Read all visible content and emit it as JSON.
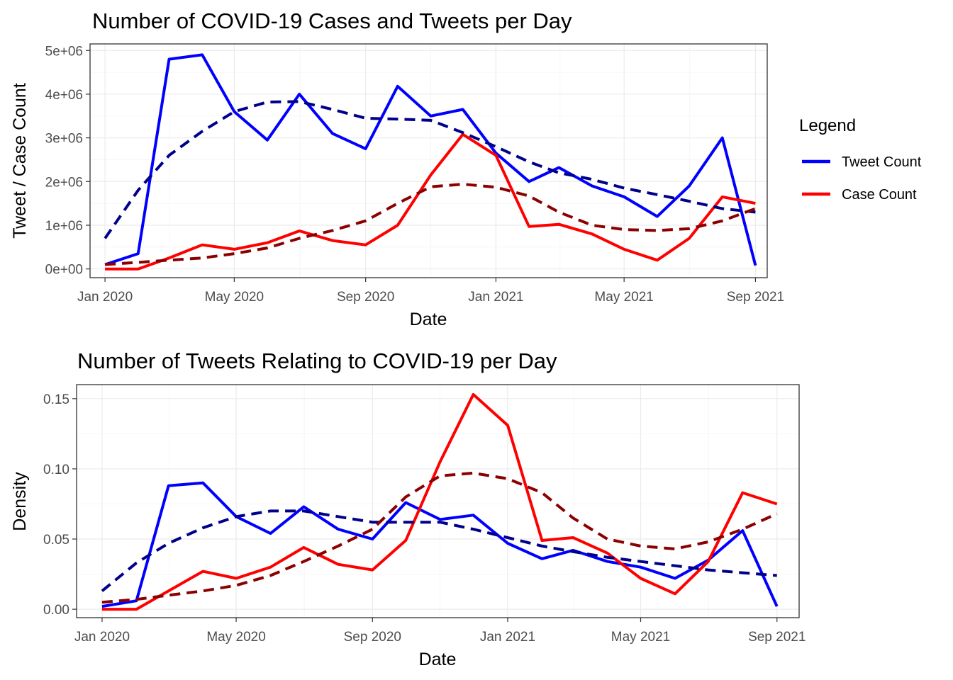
{
  "chart_data": [
    {
      "type": "line",
      "title": "Number of COVID-19 Cases and Tweets per Day",
      "xlabel": "Date",
      "ylabel": "Tweet / Case Count",
      "x_ticks": [
        "2020-01-01",
        "2020-05-01",
        "2020-09-01",
        "2021-01-01",
        "2021-05-01",
        "2021-09-01"
      ],
      "x_tick_labels": [
        "Jan 2020",
        "May 2020",
        "Sep 2020",
        "Jan 2021",
        "May 2021",
        "Sep 2021"
      ],
      "xlim": [
        "2019-12-18",
        "2021-09-12"
      ],
      "y_ticks": [
        0,
        1000000,
        2000000,
        3000000,
        4000000,
        5000000
      ],
      "y_tick_labels": [
        "0e+00",
        "1e+06",
        "2e+06",
        "3e+06",
        "4e+06",
        "5e+06"
      ],
      "ylim": [
        -200000,
        5150000
      ],
      "grid": true,
      "legend": {
        "title": "Legend",
        "position": "right",
        "entries": [
          {
            "label": "Tweet Count",
            "color": "#0000ff"
          },
          {
            "label": "Case Count",
            "color": "#ff0000"
          }
        ]
      },
      "x": [
        "2020-01-01",
        "2020-02-01",
        "2020-03-01",
        "2020-04-01",
        "2020-05-01",
        "2020-06-01",
        "2020-07-01",
        "2020-08-01",
        "2020-09-01",
        "2020-10-01",
        "2020-11-01",
        "2020-12-01",
        "2021-01-01",
        "2021-02-01",
        "2021-03-01",
        "2021-04-01",
        "2021-05-01",
        "2021-06-01",
        "2021-07-01",
        "2021-08-01",
        "2021-09-01"
      ],
      "series": [
        {
          "name": "Tweet Count",
          "color": "#0000ff",
          "style": "solid",
          "values": [
            100000,
            350000,
            4800000,
            4900000,
            3600000,
            2950000,
            4000000,
            3100000,
            2750000,
            4180000,
            3500000,
            3650000,
            2650000,
            2000000,
            2320000,
            1900000,
            1650000,
            1200000,
            1900000,
            3000000,
            80000
          ]
        },
        {
          "name": "Case Count",
          "color": "#ff0000",
          "style": "solid",
          "values": [
            0,
            0,
            250000,
            550000,
            450000,
            600000,
            870000,
            650000,
            550000,
            1000000,
            2150000,
            3080000,
            2600000,
            970000,
            1020000,
            800000,
            450000,
            200000,
            700000,
            1650000,
            1500000
          ]
        },
        {
          "name": "",
          "color": "#00008b",
          "style": "dashed",
          "values": [
            700000,
            1800000,
            2600000,
            3150000,
            3600000,
            3820000,
            3830000,
            3650000,
            3450000,
            3430000,
            3400000,
            3120000,
            2800000,
            2450000,
            2200000,
            2050000,
            1850000,
            1700000,
            1550000,
            1380000,
            1300000
          ]
        },
        {
          "name": "",
          "color": "#8b0000",
          "style": "dashed",
          "values": [
            100000,
            150000,
            200000,
            250000,
            350000,
            480000,
            700000,
            880000,
            1100000,
            1500000,
            1880000,
            1940000,
            1870000,
            1670000,
            1300000,
            1000000,
            900000,
            880000,
            920000,
            1100000,
            1380000
          ]
        }
      ]
    },
    {
      "type": "line",
      "title": "Number of Tweets Relating to COVID-19 per Day",
      "xlabel": "Date",
      "ylabel": "Density",
      "x_ticks": [
        "2020-01-01",
        "2020-05-01",
        "2020-09-01",
        "2021-01-01",
        "2021-05-01",
        "2021-09-01"
      ],
      "x_tick_labels": [
        "Jan 2020",
        "May 2020",
        "Sep 2020",
        "Jan 2021",
        "May 2021",
        "Sep 2021"
      ],
      "xlim": [
        "2019-12-09",
        "2021-09-21"
      ],
      "y_ticks": [
        0,
        0.05,
        0.1,
        0.15
      ],
      "y_tick_labels": [
        "0.00",
        "0.05",
        "0.10",
        "0.15"
      ],
      "ylim": [
        -0.006,
        0.16
      ],
      "grid": true,
      "x": [
        "2020-01-01",
        "2020-02-01",
        "2020-03-01",
        "2020-04-01",
        "2020-05-01",
        "2020-06-01",
        "2020-07-01",
        "2020-08-01",
        "2020-09-01",
        "2020-10-01",
        "2020-11-01",
        "2020-12-01",
        "2021-01-01",
        "2021-02-01",
        "2021-03-01",
        "2021-04-01",
        "2021-05-01",
        "2021-06-01",
        "2021-07-01",
        "2021-08-01",
        "2021-09-01"
      ],
      "series": [
        {
          "name": "",
          "color": "#0000ff",
          "style": "solid",
          "values": [
            0.002,
            0.006,
            0.088,
            0.09,
            0.066,
            0.054,
            0.073,
            0.057,
            0.05,
            0.076,
            0.064,
            0.067,
            0.047,
            0.036,
            0.042,
            0.034,
            0.03,
            0.022,
            0.035,
            0.056,
            0.002
          ]
        },
        {
          "name": "",
          "color": "#ff0000",
          "style": "solid",
          "values": [
            0,
            0,
            0.013,
            0.027,
            0.022,
            0.03,
            0.044,
            0.032,
            0.028,
            0.049,
            0.105,
            0.153,
            0.131,
            0.049,
            0.051,
            0.04,
            0.022,
            0.011,
            0.034,
            0.083,
            0.075
          ]
        },
        {
          "name": "",
          "color": "#00008b",
          "style": "dashed",
          "values": [
            0.013,
            0.033,
            0.047,
            0.058,
            0.066,
            0.07,
            0.07,
            0.066,
            0.062,
            0.062,
            0.062,
            0.057,
            0.051,
            0.045,
            0.041,
            0.037,
            0.034,
            0.031,
            0.028,
            0.026,
            0.024
          ]
        },
        {
          "name": "",
          "color": "#8b0000",
          "style": "dashed",
          "values": [
            0.005,
            0.007,
            0.01,
            0.013,
            0.017,
            0.024,
            0.034,
            0.045,
            0.057,
            0.08,
            0.095,
            0.097,
            0.093,
            0.083,
            0.065,
            0.05,
            0.045,
            0.043,
            0.048,
            0.057,
            0.068
          ]
        }
      ]
    }
  ]
}
